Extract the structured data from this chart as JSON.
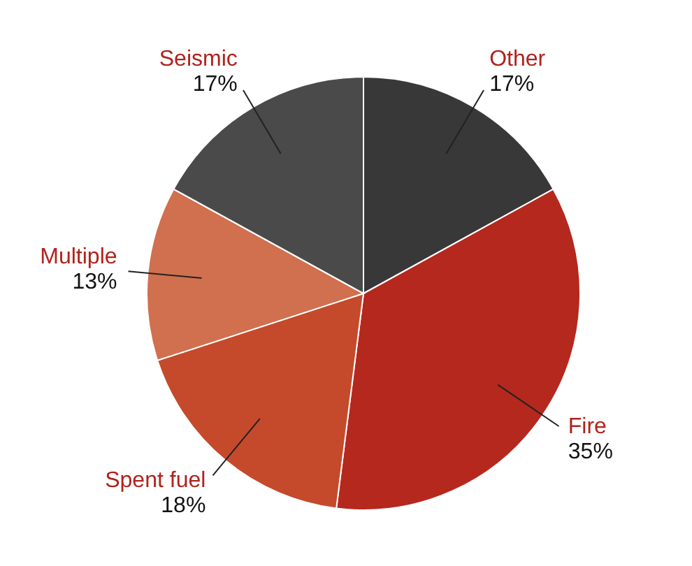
{
  "chart_data": {
    "type": "pie",
    "categories": [
      "Other",
      "Fire",
      "Spent fuel",
      "Multiple",
      "Seismic"
    ],
    "values": [
      17,
      35,
      18,
      13,
      17
    ],
    "value_labels": [
      "17%",
      "35%",
      "18%",
      "13%",
      "17%"
    ],
    "colors": [
      "#383838",
      "#b5281e",
      "#c54a2c",
      "#d0704f",
      "#4a4a4a"
    ],
    "legend": false
  }
}
